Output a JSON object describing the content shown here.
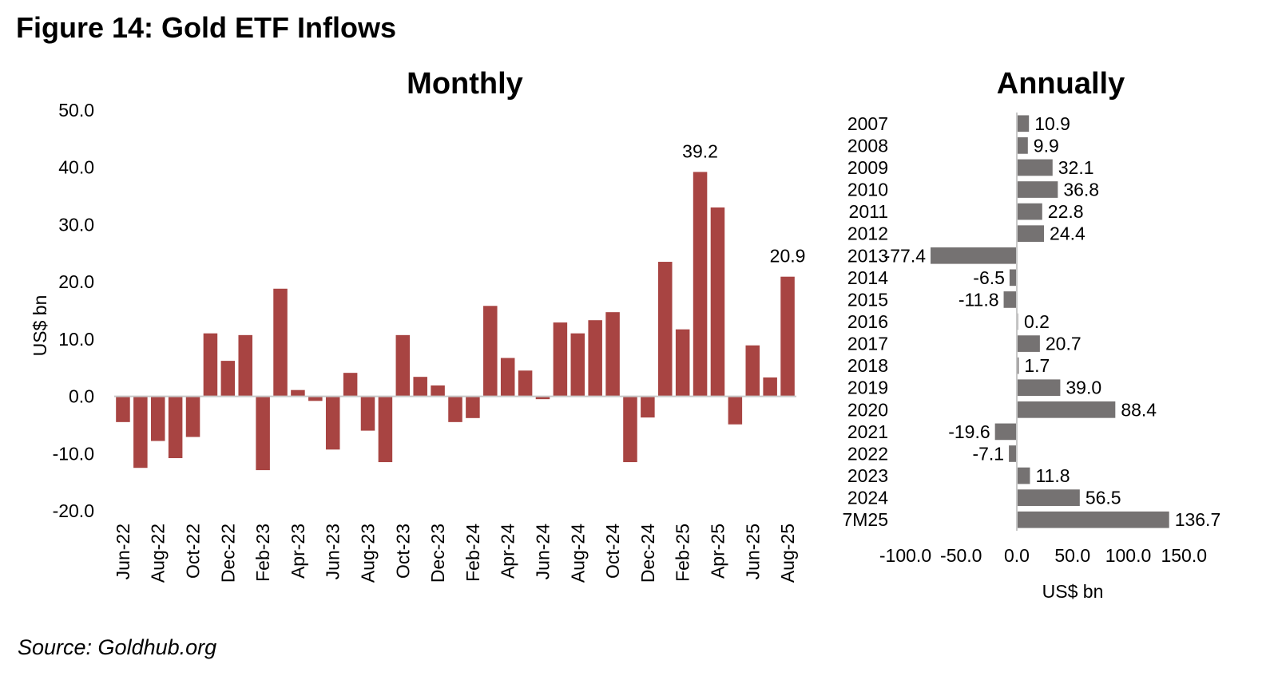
{
  "figure_title": "Figure 14: Gold ETF Inflows",
  "source": "Source: Goldhub.org",
  "colors": {
    "monthly_bar": "#a84442",
    "annual_bar": "#757272",
    "axis": "#c8c8c8"
  },
  "chart_data": [
    {
      "type": "bar",
      "title": "Monthly",
      "ylabel": "US$ bn",
      "xlabel": "",
      "ylim": [
        -20,
        50
      ],
      "yticks": [
        "50.0",
        "40.0",
        "30.0",
        "20.0",
        "10.0",
        "0.0",
        "-10.0",
        "-20.0"
      ],
      "ytick_values": [
        50,
        40,
        30,
        20,
        10,
        0,
        -10,
        -20
      ],
      "categories": [
        "Jun-22",
        "Jul-22",
        "Aug-22",
        "Sep-22",
        "Oct-22",
        "Nov-22",
        "Dec-22",
        "Jan-23",
        "Feb-23",
        "Mar-23",
        "Apr-23",
        "May-23",
        "Jun-23",
        "Jul-23",
        "Aug-23",
        "Sep-23",
        "Oct-23",
        "Nov-23",
        "Dec-23",
        "Jan-24",
        "Feb-24",
        "Mar-24",
        "Apr-24",
        "May-24",
        "Jun-24",
        "Jul-24",
        "Aug-24",
        "Sep-24",
        "Oct-24",
        "Nov-24",
        "Dec-24",
        "Jan-25",
        "Feb-25",
        "Mar-25",
        "Apr-25",
        "May-25",
        "Jun-25",
        "Jul-25",
        "Aug-25"
      ],
      "xtick_labels": [
        "Jun-22",
        "Aug-22",
        "Oct-22",
        "Dec-22",
        "Feb-23",
        "Apr-23",
        "Jun-23",
        "Aug-23",
        "Oct-23",
        "Dec-23",
        "Feb-24",
        "Apr-24",
        "Jun-24",
        "Aug-24",
        "Oct-24",
        "Dec-24",
        "Feb-25",
        "Apr-25",
        "Jun-25",
        "Aug-25"
      ],
      "values": [
        -4.5,
        -12.5,
        -7.8,
        -10.8,
        -7.1,
        11.0,
        6.2,
        10.7,
        -12.9,
        18.8,
        1.1,
        -0.8,
        -9.3,
        4.1,
        -6.0,
        -11.5,
        10.7,
        3.4,
        1.9,
        -4.5,
        -3.8,
        15.8,
        6.7,
        4.5,
        -0.5,
        12.9,
        11.0,
        13.3,
        14.7,
        -11.5,
        -3.7,
        23.5,
        11.7,
        39.2,
        33.0,
        -4.9,
        8.9,
        3.3,
        20.9
      ],
      "data_labels": [
        {
          "category": "Mar-25",
          "text": "39.2"
        },
        {
          "category": "Aug-25",
          "text": "20.9"
        }
      ]
    },
    {
      "type": "bar",
      "orientation": "horizontal",
      "title": "Annually",
      "xlabel": "US$ bn",
      "ylabel": "",
      "xlim": [
        -100,
        150
      ],
      "xticks": [
        "-100.0",
        "-50.0",
        "0.0",
        "50.0",
        "100.0",
        "150.0"
      ],
      "xtick_values": [
        -100,
        -50,
        0,
        50,
        100,
        150
      ],
      "categories": [
        "2007",
        "2008",
        "2009",
        "2010",
        "2011",
        "2012",
        "2013",
        "2014",
        "2015",
        "2016",
        "2017",
        "2018",
        "2019",
        "2020",
        "2021",
        "2022",
        "2023",
        "2024",
        "7M25"
      ],
      "values": [
        10.9,
        9.9,
        32.1,
        36.8,
        22.8,
        24.4,
        -77.4,
        -6.5,
        -11.8,
        0.2,
        20.7,
        1.7,
        39.0,
        88.4,
        -19.6,
        -7.1,
        11.8,
        56.5,
        136.7
      ],
      "value_labels": [
        "10.9",
        "9.9",
        "32.1",
        "36.8",
        "22.8",
        "24.4",
        "-77.4",
        "-6.5",
        "-11.8",
        "0.2",
        "20.7",
        "1.7",
        "39.0",
        "88.4",
        "-19.6",
        "-7.1",
        "11.8",
        "56.5",
        "136.7"
      ]
    }
  ]
}
